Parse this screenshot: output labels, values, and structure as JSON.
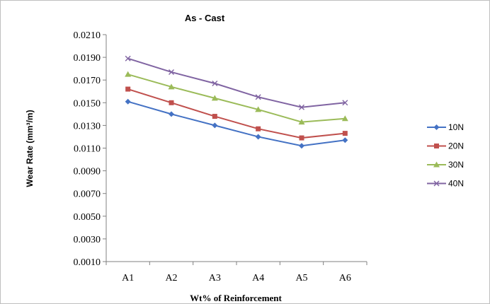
{
  "chart_data": {
    "type": "line",
    "title": "As - Cast",
    "xlabel": "Wt% of Reinforcement",
    "ylabel": "Wear Rate (mm³/m)",
    "categories": [
      "A1",
      "A2",
      "A3",
      "A4",
      "A5",
      "A6"
    ],
    "ylim": [
      0.001,
      0.021
    ],
    "yticks": [
      "0.0010",
      "0.0030",
      "0.0050",
      "0.0070",
      "0.0090",
      "0.0110",
      "0.0130",
      "0.0150",
      "0.0170",
      "0.0190",
      "0.0210"
    ],
    "grid": false,
    "legend_position": "right",
    "series": [
      {
        "name": "10N",
        "color": "#4472C4",
        "marker": "diamond",
        "values": [
          0.0151,
          0.014,
          0.013,
          0.012,
          0.0112,
          0.0117
        ]
      },
      {
        "name": "20N",
        "color": "#C0504D",
        "marker": "square",
        "values": [
          0.0162,
          0.015,
          0.0138,
          0.0127,
          0.0119,
          0.0123
        ]
      },
      {
        "name": "30N",
        "color": "#9BBB59",
        "marker": "triangle",
        "values": [
          0.0175,
          0.0164,
          0.0154,
          0.0144,
          0.0133,
          0.0136
        ]
      },
      {
        "name": "40N",
        "color": "#8064A2",
        "marker": "x",
        "values": [
          0.0189,
          0.0177,
          0.0167,
          0.0155,
          0.0146,
          0.015
        ]
      }
    ]
  }
}
